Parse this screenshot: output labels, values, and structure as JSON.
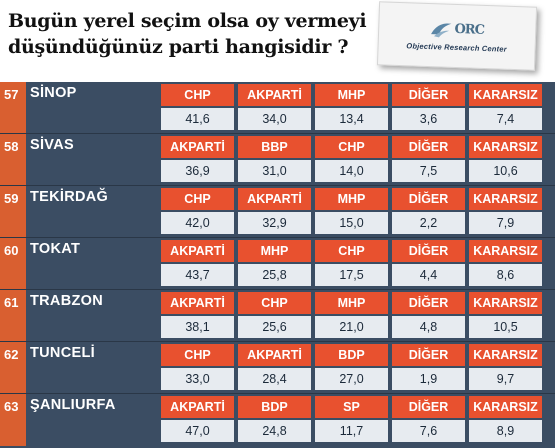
{
  "header": {
    "title_line1": "Bugün yerel seçim olsa oy vermeyi",
    "title_line2": "düşündüğünüz  parti hangisidir ?",
    "logo_letters": "ORC",
    "logo_caption": "Objective Research Center"
  },
  "colors": {
    "party_cell": "#e8512f",
    "value_cell": "#e7ebf0",
    "background": "#3b4d63",
    "number_badge": "#d95f30"
  },
  "rows": [
    {
      "num": "57",
      "city": "SİNOP",
      "parties": [
        "CHP",
        "AKPARTİ",
        "MHP",
        "DİĞER",
        "KARARSIZ"
      ],
      "values": [
        "41,6",
        "34,0",
        "13,4",
        "3,6",
        "7,4"
      ]
    },
    {
      "num": "58",
      "city": "SİVAS",
      "parties": [
        "AKPARTİ",
        "BBP",
        "CHP",
        "DİĞER",
        "KARARSIZ"
      ],
      "values": [
        "36,9",
        "31,0",
        "14,0",
        "7,5",
        "10,6"
      ]
    },
    {
      "num": "59",
      "city": "TEKİRDAĞ",
      "parties": [
        "CHP",
        "AKPARTİ",
        "MHP",
        "DİĞER",
        "KARARSIZ"
      ],
      "values": [
        "42,0",
        "32,9",
        "15,0",
        "2,2",
        "7,9"
      ]
    },
    {
      "num": "60",
      "city": "TOKAT",
      "parties": [
        "AKPARTİ",
        "MHP",
        "CHP",
        "DİĞER",
        "KARARSIZ"
      ],
      "values": [
        "43,7",
        "25,8",
        "17,5",
        "4,4",
        "8,6"
      ]
    },
    {
      "num": "61",
      "city": "TRABZON",
      "parties": [
        "AKPARTİ",
        "CHP",
        "MHP",
        "DİĞER",
        "KARARSIZ"
      ],
      "values": [
        "38,1",
        "25,6",
        "21,0",
        "4,8",
        "10,5"
      ]
    },
    {
      "num": "62",
      "city": "TUNCELİ",
      "parties": [
        "CHP",
        "AKPARTİ",
        "BDP",
        "DİĞER",
        "KARARSIZ"
      ],
      "values": [
        "33,0",
        "28,4",
        "27,0",
        "1,9",
        "9,7"
      ]
    },
    {
      "num": "63",
      "city": "ŞANLIURFA",
      "parties": [
        "AKPARTİ",
        "BDP",
        "SP",
        "DİĞER",
        "KARARSIZ"
      ],
      "values": [
        "47,0",
        "24,8",
        "11,7",
        "7,6",
        "8,9"
      ]
    }
  ]
}
